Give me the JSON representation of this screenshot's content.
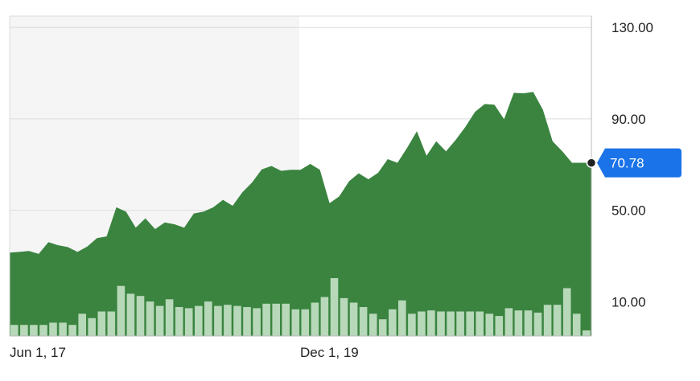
{
  "chart_data": {
    "type": "area",
    "x_labels": [
      "Jun 1, 17",
      "Dec 1, 19"
    ],
    "y_ticks": [
      "130.00",
      "90.00",
      "50.00",
      "10.00"
    ],
    "y_tick_values": [
      130,
      90,
      50,
      10
    ],
    "ylim": [
      -5,
      135
    ],
    "grid": true,
    "current_value": "70.78",
    "current_value_num": 70.78,
    "colors": {
      "area": "#3a8440",
      "shaded_period": "#f5f5f5",
      "volume": "#b7d8b9",
      "badge": "#1a73e8",
      "grid": "#dcdcdc"
    },
    "series": [
      {
        "values": [
          31.5,
          31.8,
          32.2,
          30.9,
          36.1,
          34.7,
          33.9,
          31.8,
          34.1,
          37.8,
          38.6,
          51.3,
          49.4,
          42.4,
          46.5,
          41.8,
          44.7,
          43.9,
          42.4,
          48.6,
          49.4,
          51.3,
          54.6,
          52.0,
          57.9,
          62.2,
          67.9,
          69.4,
          67.3,
          67.7,
          67.7,
          70.3,
          67.7,
          53.1,
          56.1,
          62.7,
          66.2,
          63.6,
          66.4,
          72.4,
          70.8,
          77.4,
          84.6,
          73.9,
          80.2,
          75.8,
          80.8,
          86.5,
          93.1,
          96.5,
          96.2,
          89.9,
          101.4,
          101.2,
          101.8,
          94.0,
          80.2,
          75.8,
          70.8,
          70.8,
          70.78
        ]
      }
    ],
    "volume": [
      1.0,
      1.0,
      1.0,
      1.0,
      1.2,
      1.2,
      1.0,
      2.0,
      1.6,
      2.2,
      2.2,
      4.5,
      3.8,
      3.6,
      3.1,
      2.7,
      3.3,
      2.6,
      2.5,
      2.7,
      3.1,
      2.7,
      2.8,
      2.7,
      2.6,
      2.5,
      2.9,
      2.9,
      2.9,
      2.4,
      2.4,
      3.0,
      3.5,
      5.2,
      3.4,
      3.0,
      2.6,
      2.0,
      1.5,
      2.4,
      3.2,
      2.0,
      2.2,
      2.3,
      2.2,
      2.2,
      2.2,
      2.2,
      2.2,
      2.0,
      1.8,
      2.5,
      2.3,
      2.3,
      2.1,
      2.8,
      2.8,
      4.3,
      2.0,
      0.5
    ]
  }
}
